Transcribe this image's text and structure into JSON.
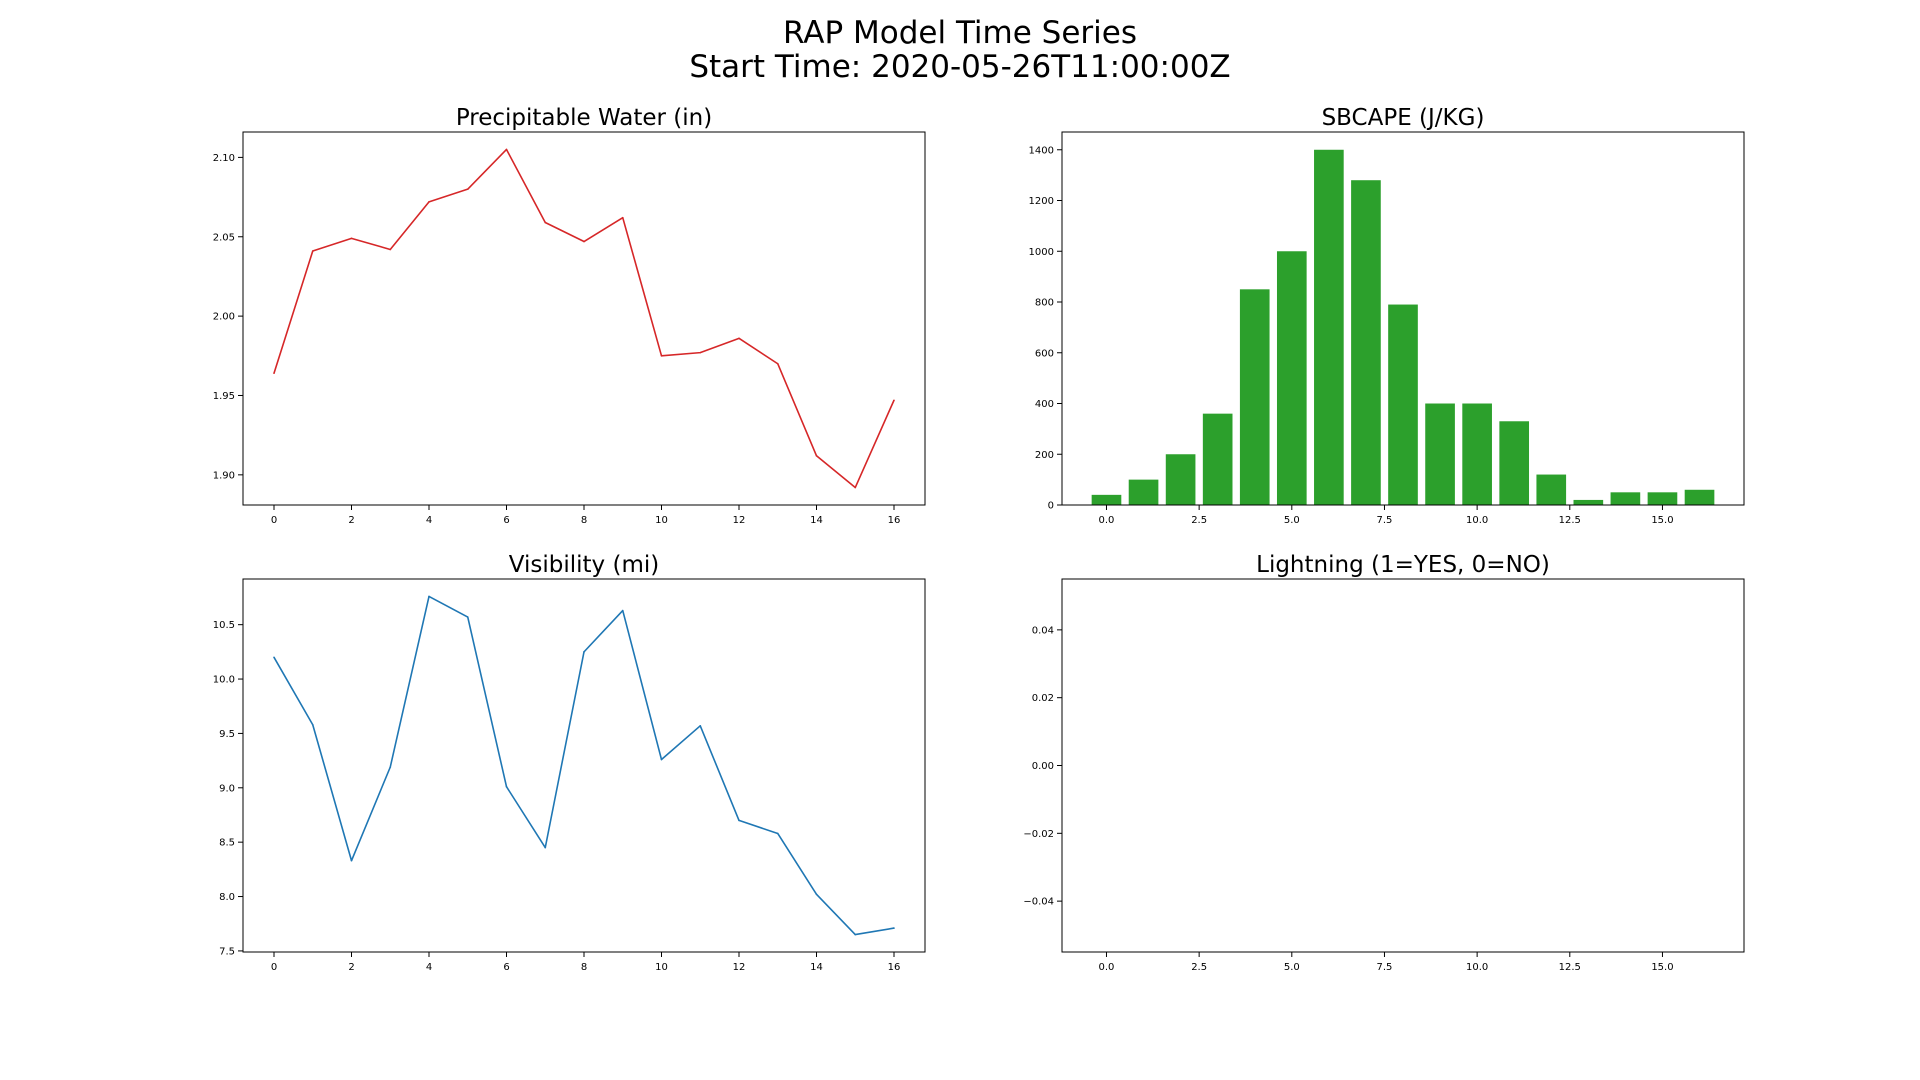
{
  "figure": {
    "title_line1": "RAP Model Time Series",
    "title_line2": "Start Time: 2020-05-26T11:00:00Z"
  },
  "chart_data": [
    {
      "id": "pwat",
      "type": "line",
      "title": "Precipitable Water (in)",
      "color": "#d62728",
      "x": [
        0,
        1,
        2,
        3,
        4,
        5,
        6,
        7,
        8,
        9,
        10,
        11,
        12,
        13,
        14,
        15,
        16
      ],
      "values": [
        1.964,
        2.041,
        2.049,
        2.042,
        2.072,
        2.08,
        2.105,
        2.059,
        2.047,
        2.062,
        1.975,
        1.977,
        1.986,
        1.97,
        1.912,
        1.892,
        1.947
      ],
      "xlim": [
        -0.8,
        16.8
      ],
      "ylim": [
        1.881,
        2.116
      ],
      "xticks": [
        0,
        2,
        4,
        6,
        8,
        10,
        12,
        14,
        16
      ],
      "xtick_labels": [
        "0",
        "2",
        "4",
        "6",
        "8",
        "10",
        "12",
        "14",
        "16"
      ],
      "yticks": [
        1.9,
        1.95,
        2.0,
        2.05,
        2.1
      ],
      "ytick_labels": [
        "1.90",
        "1.95",
        "2.00",
        "2.05",
        "2.10"
      ]
    },
    {
      "id": "sbcape",
      "type": "bar",
      "title": "SBCAPE (J/KG)",
      "color": "#2ca02c",
      "x": [
        0,
        1,
        2,
        3,
        4,
        5,
        6,
        7,
        8,
        9,
        10,
        11,
        12,
        13,
        14,
        15,
        16
      ],
      "values": [
        40,
        100,
        200,
        360,
        850,
        1000,
        1400,
        1280,
        790,
        400,
        400,
        330,
        120,
        20,
        50,
        50,
        60
      ],
      "bar_width": 0.8,
      "xlim": [
        -1.2,
        17.2
      ],
      "ylim": [
        0,
        1470
      ],
      "xticks": [
        0,
        2.5,
        5,
        7.5,
        10,
        12.5,
        15
      ],
      "xtick_labels": [
        "0.0",
        "2.5",
        "5.0",
        "7.5",
        "10.0",
        "12.5",
        "15.0"
      ],
      "yticks": [
        0,
        200,
        400,
        600,
        800,
        1000,
        1200,
        1400
      ],
      "ytick_labels": [
        "0",
        "200",
        "400",
        "600",
        "800",
        "1000",
        "1200",
        "1400"
      ]
    },
    {
      "id": "vis",
      "type": "line",
      "title": "Visibility (mi)",
      "color": "#1f77b4",
      "x": [
        0,
        1,
        2,
        3,
        4,
        5,
        6,
        7,
        8,
        9,
        10,
        11,
        12,
        13,
        14,
        15,
        16
      ],
      "values": [
        10.2,
        9.58,
        8.33,
        9.19,
        10.76,
        10.57,
        9.01,
        8.45,
        10.25,
        10.63,
        9.26,
        9.57,
        8.7,
        8.58,
        8.02,
        7.65,
        7.71
      ],
      "xlim": [
        -0.8,
        16.8
      ],
      "ylim": [
        7.49,
        10.92
      ],
      "xticks": [
        0,
        2,
        4,
        6,
        8,
        10,
        12,
        14,
        16
      ],
      "xtick_labels": [
        "0",
        "2",
        "4",
        "6",
        "8",
        "10",
        "12",
        "14",
        "16"
      ],
      "yticks": [
        7.5,
        8.0,
        8.5,
        9.0,
        9.5,
        10.0,
        10.5
      ],
      "ytick_labels": [
        "7.5",
        "8.0",
        "8.5",
        "9.0",
        "9.5",
        "10.0",
        "10.5"
      ]
    },
    {
      "id": "ltng",
      "type": "bar",
      "title": "Lightning (1=YES, 0=NO)",
      "color": "#1f77b4",
      "x": [
        0,
        1,
        2,
        3,
        4,
        5,
        6,
        7,
        8,
        9,
        10,
        11,
        12,
        13,
        14,
        15,
        16
      ],
      "values": [
        0,
        0,
        0,
        0,
        0,
        0,
        0,
        0,
        0,
        0,
        0,
        0,
        0,
        0,
        0,
        0,
        0
      ],
      "bar_width": 0.8,
      "xlim": [
        -1.2,
        17.2
      ],
      "ylim": [
        -0.055,
        0.055
      ],
      "xticks": [
        0,
        2.5,
        5,
        7.5,
        10,
        12.5,
        15
      ],
      "xtick_labels": [
        "0.0",
        "2.5",
        "5.0",
        "7.5",
        "10.0",
        "12.5",
        "15.0"
      ],
      "yticks": [
        -0.04,
        -0.02,
        0,
        0.02,
        0.04
      ],
      "ytick_labels": [
        "−0.04",
        "−0.02",
        "0.00",
        "0.02",
        "0.04"
      ]
    }
  ]
}
